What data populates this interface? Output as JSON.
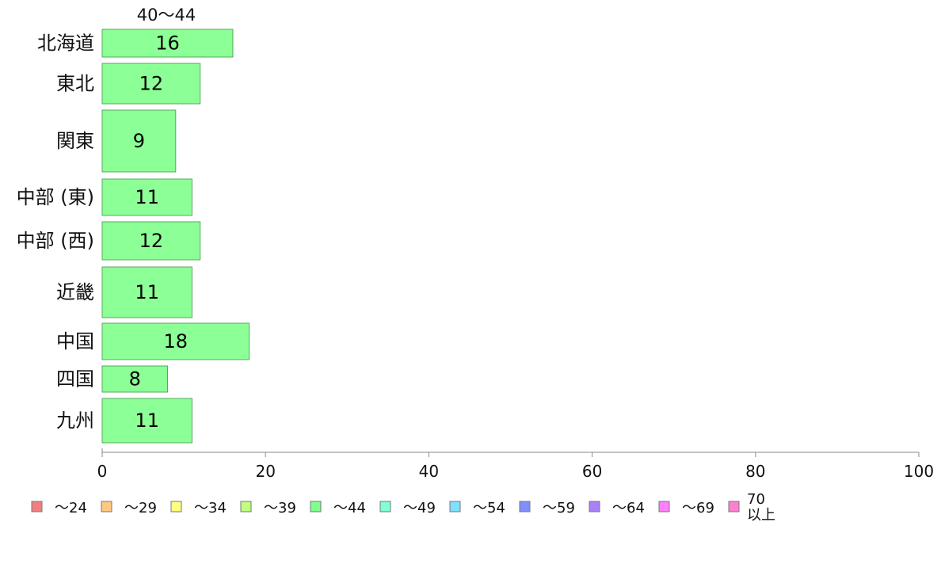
{
  "chart_data": {
    "type": "bar",
    "orientation": "horizontal",
    "series_header": "40〜44",
    "categories": [
      "北海道",
      "東北",
      "関東",
      "中部 (東)",
      "中部 (西)",
      "近畿",
      "中国",
      "四国",
      "九州"
    ],
    "values": [
      16,
      12,
      9,
      11,
      12,
      11,
      18,
      8,
      11
    ],
    "bar_color": "#8cff96",
    "bar_stroke": "#58a85e",
    "xlim": [
      0,
      100
    ],
    "xticks": [
      0,
      20,
      40,
      60,
      80,
      100
    ],
    "grid": false,
    "legend_position": "bottom",
    "legend": [
      {
        "label": "〜24",
        "color": "#f08080"
      },
      {
        "label": "〜29",
        "color": "#ffc880"
      },
      {
        "label": "〜34",
        "color": "#ffff80"
      },
      {
        "label": "〜39",
        "color": "#c0ff80"
      },
      {
        "label": "〜44",
        "color": "#80ff8c"
      },
      {
        "label": "〜49",
        "color": "#80ffd8"
      },
      {
        "label": "〜54",
        "color": "#80e0ff"
      },
      {
        "label": "〜59",
        "color": "#8090f8"
      },
      {
        "label": "〜64",
        "color": "#a880f8"
      },
      {
        "label": "〜69",
        "color": "#ff80ff"
      },
      {
        "label": "70\n以上",
        "color": "#ff80d0"
      }
    ]
  }
}
